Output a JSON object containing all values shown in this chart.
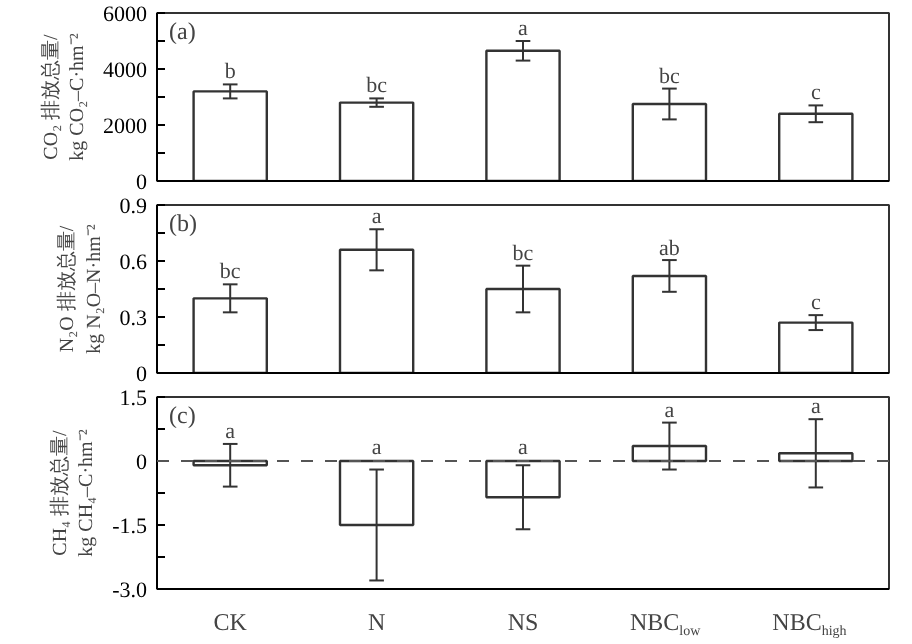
{
  "chart_data": [
    {
      "type": "bar",
      "categories": [
        "CK",
        "N",
        "NS",
        "NBC$_{low}$",
        "NBC$_{high}$"
      ],
      "values": [
        3200,
        2800,
        4650,
        2750,
        2400
      ],
      "errors": [
        250,
        150,
        350,
        550,
        300
      ],
      "color": "#ffffff",
      "ylim": [
        0,
        6000
      ],
      "yticks": [
        0,
        {
          "value": 1000,
          "label": null
        },
        2000,
        {
          "value": 3000,
          "label": null
        },
        4000,
        {
          "value": 5000,
          "label": null
        },
        6000
      ],
      "ylabel": "CO₂ 排放总量/\nkg CO₂–C·hm⁻²",
      "tick_labels": "y",
      "grid": false,
      "annotations": [
        "(a)",
        {
          "text": "b",
          "x": "CK",
          "y": 3450
        },
        {
          "text": "bc",
          "x": "N",
          "y": 2950
        },
        {
          "text": "a",
          "x": "NS",
          "y": 5000
        },
        {
          "text": "bc",
          "x": "NBC$_{low}$",
          "y": 3300
        },
        {
          "text": "c",
          "x": "NBC$_{high}$",
          "y": 2700
        }
      ]
    },
    {
      "type": "bar",
      "categories": [
        "CK",
        "N",
        "NS",
        "NBC$_{low}$",
        "NBC$_{high}$"
      ],
      "values": [
        0.4,
        0.66,
        0.45,
        0.52,
        0.27
      ],
      "errors": [
        0.075,
        0.11,
        0.125,
        0.085,
        0.04
      ],
      "color": "#ffffff",
      "ylim": [
        0,
        0.9
      ],
      "yticks": [
        0,
        {
          "value": 0.15,
          "label": null
        },
        0.3,
        {
          "value": 0.45,
          "label": null
        },
        0.6,
        {
          "value": 0.75,
          "label": null
        },
        0.9
      ],
      "ylabel": "N₂O 排放总量/\nkg N₂O–N·hm⁻²",
      "tick_labels": "y",
      "grid": false,
      "annotations": [
        "(b)",
        {
          "text": "bc",
          "x": "CK",
          "y": 0.475
        },
        {
          "text": "a",
          "x": "N",
          "y": 0.77
        },
        {
          "text": "bc",
          "x": "NS",
          "y": 0.575
        },
        {
          "text": "ab",
          "x": "NBC$_{low}$",
          "y": 0.6
        },
        {
          "text": "c",
          "x": "NBC$_{high}$",
          "y": 0.31
        }
      ]
    },
    {
      "type": "bar",
      "categories": [
        "CK",
        "N",
        "NS",
        "NBC$_{low}$",
        "NBC$_{high}$"
      ],
      "values": [
        -0.1,
        -1.5,
        -0.85,
        0.35,
        0.18
      ],
      "errors": [
        0.5,
        1.3,
        0.75,
        0.55,
        0.8
      ],
      "color": "#ffffff",
      "ylim": [
        -3,
        1.5
      ],
      "yticks": [
        {
          "value": -3,
          "label": "-3.0"
        },
        {
          "value": -2.25,
          "label": null
        },
        -1.5,
        {
          "value": -0.75,
          "label": null
        },
        0,
        {
          "value": 0.75,
          "label": null
        },
        1.5
      ],
      "ylabel": "CH₄ 排放总量/\nkg CH₄–C·hm⁻²",
      "grid": false,
      "ref_lines": [
        {
          "axis": "y",
          "value": 0,
          "label": null,
          "color": "#555555",
          "line_style": "dashed"
        }
      ],
      "annotations": [
        "(c)",
        {
          "text": "a",
          "x": "CK",
          "y": 0.4
        },
        {
          "text": "a",
          "x": "N",
          "y": 0.02
        },
        {
          "text": "a",
          "x": "NS",
          "y": 0.02
        },
        {
          "text": "a",
          "x": "NBC$_{low}$",
          "y": 0.9
        },
        {
          "text": "a",
          "x": "NBC$_{high}$",
          "y": 0.98
        }
      ]
    }
  ]
}
